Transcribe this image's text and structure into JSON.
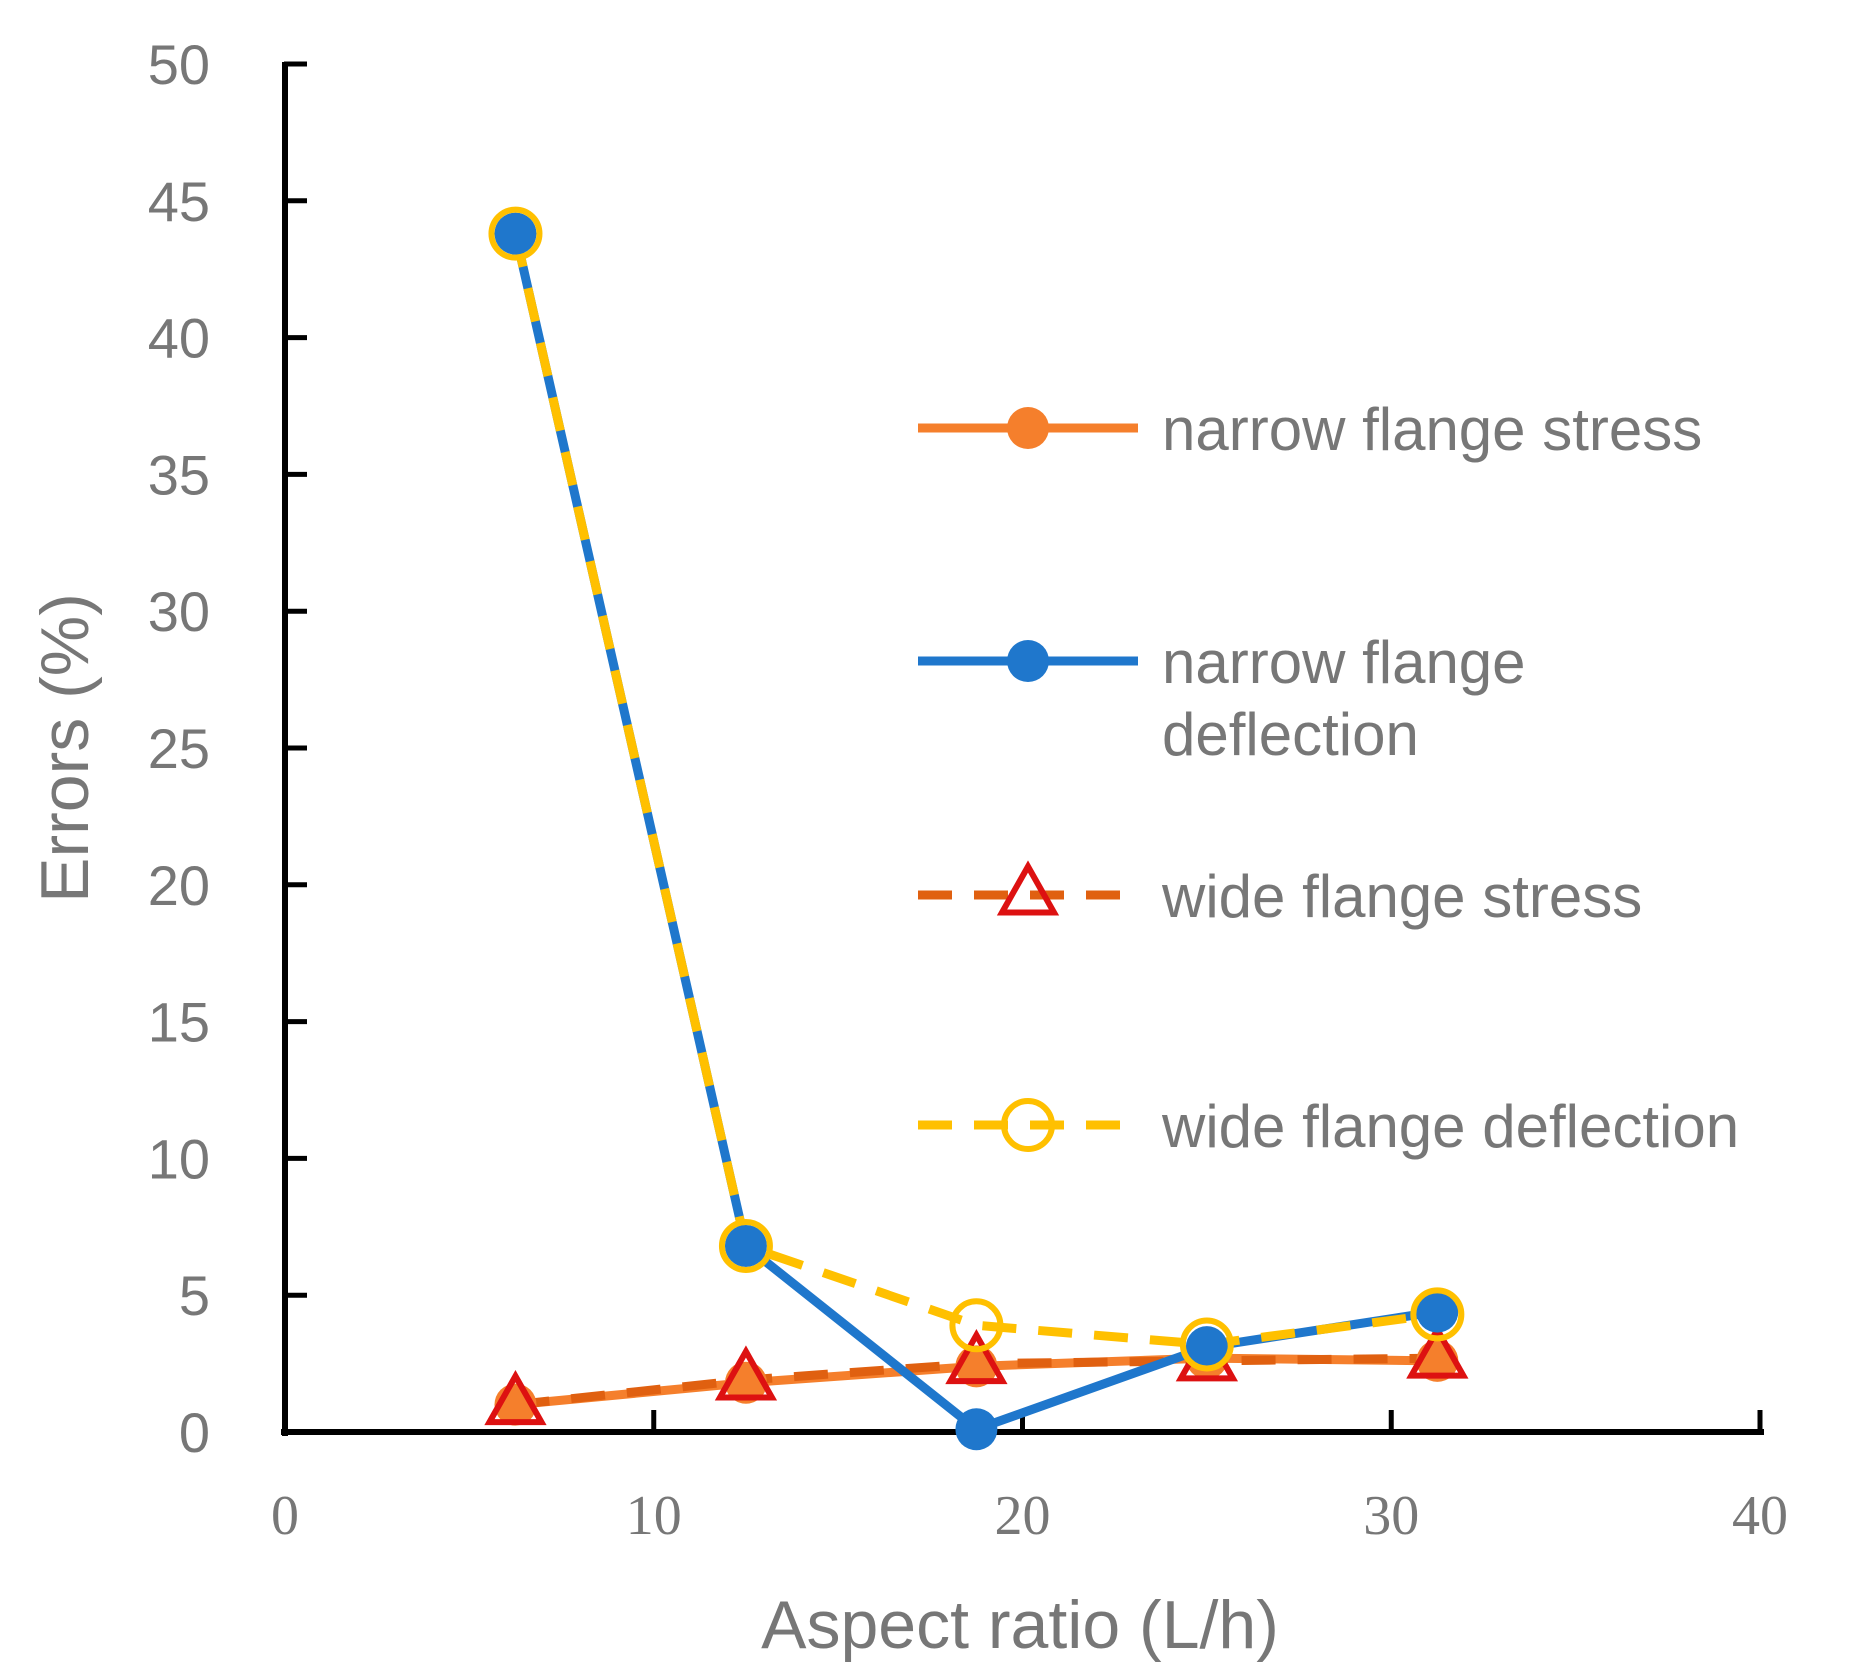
{
  "chart_data": {
    "type": "line",
    "xlabel": "Aspect ratio (L/h)",
    "ylabel": "Errors (%)",
    "xlim": [
      0,
      40
    ],
    "ylim": [
      0,
      50
    ],
    "x_ticks": [
      0,
      10,
      20,
      30,
      40
    ],
    "y_ticks": [
      0,
      5,
      10,
      15,
      20,
      25,
      30,
      35,
      40,
      45,
      50
    ],
    "grid": false,
    "legend_position": "right",
    "series": [
      {
        "name": "narrow flange stress",
        "color": "#F57F2C",
        "line_style": "solid",
        "marker": "filled-circle",
        "x": [
          6.25,
          12.5,
          18.75,
          25,
          31.25
        ],
        "y": [
          1.0,
          1.8,
          2.4,
          2.7,
          2.6
        ]
      },
      {
        "name": "narrow flange deflection",
        "color": "#1F77CC",
        "line_style": "solid",
        "marker": "filled-circle",
        "x": [
          6.25,
          12.5,
          18.75,
          25,
          31.25
        ],
        "y": [
          43.8,
          6.8,
          0.1,
          3.1,
          4.4
        ]
      },
      {
        "name": "wide flange stress",
        "color": "#E06010",
        "marker_color": "#DD1111",
        "line_style": "dashed",
        "marker": "open-triangle",
        "x": [
          6.25,
          12.5,
          18.75,
          25,
          31.25
        ],
        "y": [
          1.0,
          1.9,
          2.5,
          2.6,
          2.7
        ]
      },
      {
        "name": "wide flange deflection",
        "color": "#FFC000",
        "line_style": "dashed",
        "marker": "open-circle",
        "x": [
          6.25,
          12.5,
          18.75,
          25,
          31.25
        ],
        "y": [
          43.8,
          6.8,
          3.9,
          3.2,
          4.3
        ]
      }
    ],
    "legend_lines": [
      [
        "narrow flange stress"
      ],
      [
        "narrow flange",
        "deflection"
      ],
      [
        "wide flange stress"
      ],
      [
        "wide flange deflection"
      ]
    ]
  }
}
